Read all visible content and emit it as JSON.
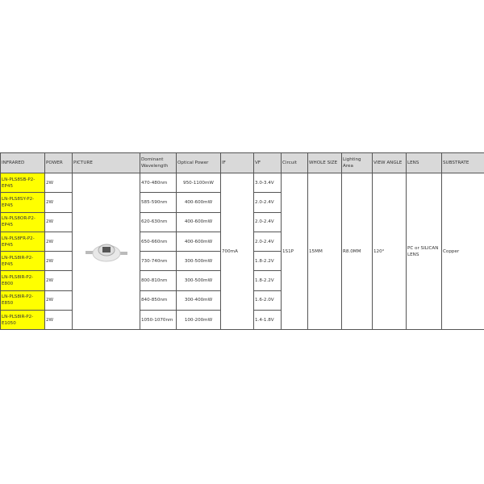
{
  "headers": [
    "INFRARED",
    "POWER",
    "PICTURE",
    "Dominant Wavelength",
    "Optical Power",
    "IF",
    "VF",
    "Circuit",
    "WHOLE SIZE",
    "Lighting Area",
    "VIEW ANGLE",
    "LENS",
    "SUBSTRATE"
  ],
  "rows": [
    {
      "model": "LN-PLS8SB-P2-EP45",
      "power": "2W",
      "wavelength": "470-480nm",
      "optical": "950-1100mW",
      "vf": "3.0-3.4V"
    },
    {
      "model": "LN-PLS8SY-P2-EP45",
      "power": "2W",
      "wavelength": "585-590nm",
      "optical": "400-600mW",
      "vf": "2.0-2.4V"
    },
    {
      "model": "LN-PLS8OR-P2-EP45",
      "power": "2W",
      "wavelength": "620-630nm",
      "optical": "400-600mW",
      "vf": "2.0-2.4V"
    },
    {
      "model": "LN-PLS8FR-P2-EP45",
      "power": "2W",
      "wavelength": "650-660nm",
      "optical": "400-600mW",
      "vf": "2.0-2.4V"
    },
    {
      "model": "LN-PLS8IR-P2-EP45",
      "power": "2W",
      "wavelength": "730-740nm",
      "optical": "300-500mW",
      "vf": "1.8-2.2V"
    },
    {
      "model": "LN-PLS8IR-P2-E800",
      "power": "2W",
      "wavelength": "800-810nm",
      "optical": "300-500mW",
      "vf": "1.8-2.2V"
    },
    {
      "model": "LN-PLS8IR-P2-E850",
      "power": "2W",
      "wavelength": "840-850nm",
      "optical": "300-400mW",
      "vf": "1.6-2.0V"
    },
    {
      "model": "LN-PLS8IR-P2-E1050",
      "power": "2W",
      "wavelength": "1050-1070nm",
      "optical": "100-200mW",
      "vf": "1.4-1.8V"
    }
  ],
  "shared": {
    "if": "700mA",
    "circuit": "1S1P",
    "whole_size": "15MM",
    "lighting_area": "R8.0MM",
    "view_angle": "120°",
    "lens": "PC or SILICAN LENS",
    "substrate": "Copper"
  },
  "colors": {
    "highlight": "#ffff00",
    "header_bg": "#d9d9d9"
  }
}
